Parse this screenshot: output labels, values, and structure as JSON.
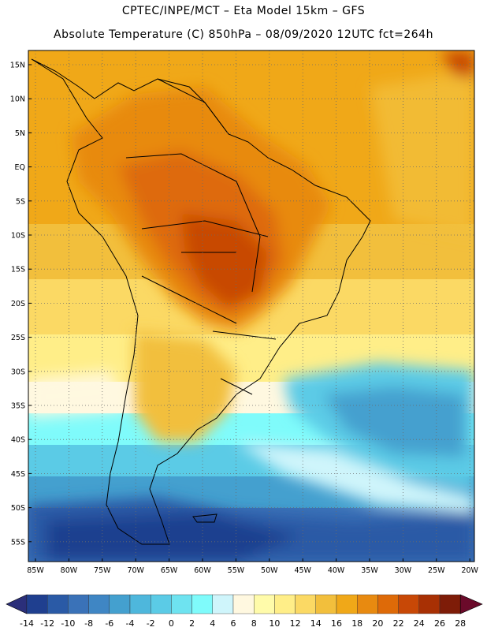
{
  "header": {
    "line1": "CPTEC/INPE/MCT –  Eta Model 15km – GFS",
    "line2": "Absolute Temperature (C) 850hPa – 08/09/2020 12UTC fct=264h"
  },
  "map": {
    "lat_labels": [
      "15N",
      "10N",
      "5N",
      "EQ",
      "5S",
      "10S",
      "15S",
      "20S",
      "25S",
      "30S",
      "35S",
      "40S",
      "45S",
      "50S",
      "55S"
    ],
    "lon_labels": [
      "85W",
      "80W",
      "75W",
      "70W",
      "65W",
      "60W",
      "55W",
      "50W",
      "45W",
      "40W",
      "35W",
      "30W",
      "25W",
      "20W"
    ]
  },
  "colorbar": {
    "labels": [
      "-14",
      "-12",
      "-10",
      "-8",
      "-6",
      "-4",
      "-2",
      "0",
      "2",
      "4",
      "6",
      "8",
      "10",
      "12",
      "14",
      "16",
      "18",
      "20",
      "22",
      "24",
      "26",
      "28"
    ],
    "colors": [
      "#1f3f8f",
      "#2a5aa6",
      "#3a72b8",
      "#3f86c4",
      "#44a0cf",
      "#4eb7dc",
      "#5bcbe6",
      "#6ee3f0",
      "#7ffbfb",
      "#cff5fb",
      "#fff8e0",
      "#fffbaa",
      "#ffee88",
      "#fbd964",
      "#f2bf3c",
      "#f0a818",
      "#e88a10",
      "#de6a08",
      "#c84806",
      "#a83004",
      "#7e1c08"
    ],
    "under_color": "#2b2f7a",
    "over_color": "#6b0a2a"
  }
}
